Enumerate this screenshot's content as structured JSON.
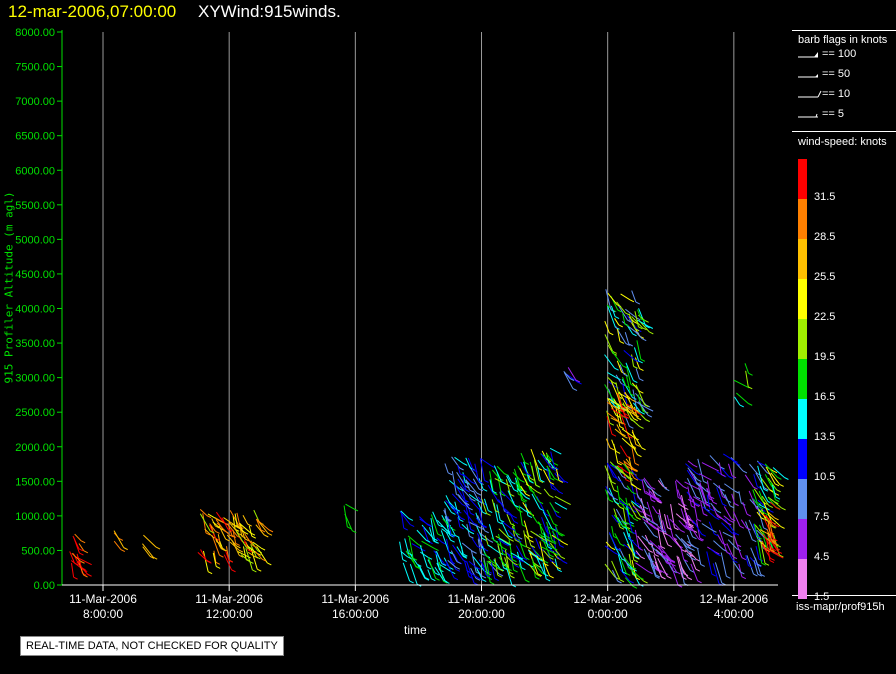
{
  "header": {
    "date_label": "12-mar-2006,07:00:00",
    "plot_name": "XYWind:915winds."
  },
  "chart_data": {
    "type": "scatter",
    "subtype": "wind-barb time-height profile",
    "ylabel": "915 Profiler Altitude (m agl)",
    "xlabel": "time",
    "ylim": [
      0,
      8000
    ],
    "yticks": [
      "0.00",
      "500.00",
      "1000.00",
      "1500.00",
      "2000.00",
      "2500.00",
      "3000.00",
      "3500.00",
      "4000.00",
      "4500.00",
      "5000.00",
      "5500.00",
      "6000.00",
      "6500.00",
      "7000.00",
      "7500.00",
      "8000.00"
    ],
    "xlim_hours": [
      6.7,
      29.4
    ],
    "xticks": [
      {
        "h": 8,
        "date": "11-Mar-2006",
        "time": "8:00:00"
      },
      {
        "h": 12,
        "date": "11-Mar-2006",
        "time": "12:00:00"
      },
      {
        "h": 16,
        "date": "11-Mar-2006",
        "time": "16:00:00"
      },
      {
        "h": 20,
        "date": "11-Mar-2006",
        "time": "20:00:00"
      },
      {
        "h": 24,
        "date": "12-Mar-2006",
        "time": "0:00:00"
      },
      {
        "h": 28,
        "date": "12-Mar-2006",
        "time": "4:00:00"
      }
    ],
    "grid": "vertical lines at major ticks",
    "clusters": [
      {
        "t0": 6.9,
        "t1": 7.3,
        "z0": 250,
        "z1": 750,
        "s0": 27,
        "s1": 32,
        "n": 14
      },
      {
        "t0": 8.3,
        "t1": 8.4,
        "z0": 500,
        "z1": 800,
        "s0": 26,
        "s1": 28,
        "n": 3
      },
      {
        "t0": 9.2,
        "t1": 9.3,
        "z0": 550,
        "z1": 800,
        "s0": 24,
        "s1": 28,
        "n": 3
      },
      {
        "t0": 11.0,
        "t1": 12.9,
        "z0": 400,
        "z1": 1100,
        "s0": 20,
        "s1": 32,
        "n": 70
      },
      {
        "t0": 15.6,
        "t1": 15.9,
        "z0": 900,
        "z1": 1200,
        "s0": 16,
        "s1": 18,
        "n": 3
      },
      {
        "t0": 17.4,
        "t1": 18.9,
        "z0": 200,
        "z1": 1100,
        "s0": 11,
        "s1": 16,
        "n": 50
      },
      {
        "t0": 18.8,
        "t1": 20.0,
        "z0": 200,
        "z1": 1900,
        "s0": 6,
        "s1": 15,
        "n": 80
      },
      {
        "t0": 20.0,
        "t1": 21.2,
        "z0": 300,
        "z1": 1800,
        "s0": 8,
        "s1": 20,
        "n": 80
      },
      {
        "t0": 21.2,
        "t1": 22.4,
        "z0": 250,
        "z1": 2000,
        "s0": 10,
        "s1": 24,
        "n": 90
      },
      {
        "t0": 22.5,
        "t1": 22.8,
        "z0": 2800,
        "z1": 3200,
        "s0": 4,
        "s1": 12,
        "n": 4
      },
      {
        "t0": 23.9,
        "t1": 25.0,
        "z0": 2500,
        "z1": 4300,
        "s0": 6,
        "s1": 24,
        "n": 80
      },
      {
        "t0": 23.9,
        "t1": 24.8,
        "z0": 1700,
        "z1": 2800,
        "s0": 20,
        "s1": 32,
        "n": 40
      },
      {
        "t0": 23.9,
        "t1": 24.8,
        "z0": 100,
        "z1": 1800,
        "s0": 8,
        "s1": 22,
        "n": 70
      },
      {
        "t0": 24.8,
        "t1": 26.6,
        "z0": 200,
        "z1": 1600,
        "s0": 1,
        "s1": 8,
        "n": 100
      },
      {
        "t0": 26.4,
        "t1": 28.8,
        "z0": 300,
        "z1": 1900,
        "s0": 4,
        "s1": 11,
        "n": 100
      },
      {
        "t0": 27.9,
        "t1": 28.4,
        "z0": 2700,
        "z1": 3300,
        "s0": 12,
        "s1": 20,
        "n": 5
      },
      {
        "t0": 28.6,
        "t1": 29.3,
        "z0": 600,
        "z1": 1800,
        "s0": 14,
        "s1": 24,
        "n": 40
      },
      {
        "t0": 28.8,
        "t1": 29.2,
        "z0": 500,
        "z1": 1200,
        "s0": 26,
        "s1": 32,
        "n": 20
      }
    ]
  },
  "legend": {
    "barb_title": "barb flags in knots",
    "barbs": [
      {
        "label": "== 100"
      },
      {
        "label": "== 50"
      },
      {
        "label": "== 10"
      },
      {
        "label": "== 5"
      }
    ],
    "speed_title": "wind-speed: knots",
    "speeds": [
      {
        "label": "31.5",
        "color": "#ff0000"
      },
      {
        "label": "28.5",
        "color": "#ff8000"
      },
      {
        "label": "25.5",
        "color": "#ffc000"
      },
      {
        "label": "22.5",
        "color": "#ffff00"
      },
      {
        "label": "19.5",
        "color": "#a0f000"
      },
      {
        "label": "16.5",
        "color": "#00e000"
      },
      {
        "label": "13.5",
        "color": "#00ffff"
      },
      {
        "label": "10.5",
        "color": "#0000ff"
      },
      {
        "label": "7.5",
        "color": "#6090f0"
      },
      {
        "label": "4.5",
        "color": "#a020f0"
      },
      {
        "label": "1.5",
        "color": "#f080f0"
      }
    ]
  },
  "footer": {
    "source_label": "iss-mapr/prof915h",
    "qc_notice": "REAL-TIME DATA, NOT CHECKED FOR QUALITY"
  }
}
